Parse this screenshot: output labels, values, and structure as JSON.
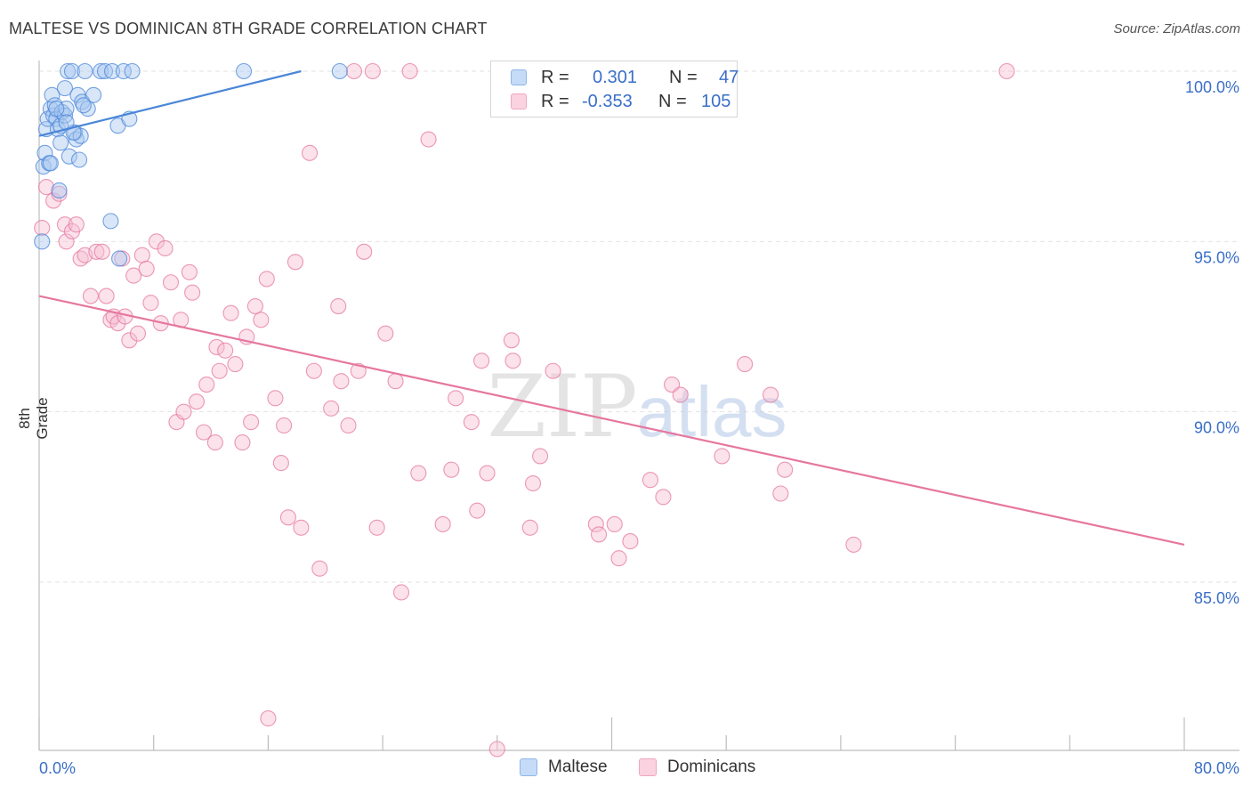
{
  "title": "MALTESE VS DOMINICAN 8TH GRADE CORRELATION CHART",
  "source": "Source: ZipAtlas.com",
  "watermark": {
    "zip": "ZIP",
    "atlas": "atlas"
  },
  "legend": {
    "rows": [
      {
        "r_label": "R =",
        "r_value": "0.301",
        "n_label": "N =",
        "n_value": "47",
        "color": "#8fb5ea",
        "fill": "#c5dbf7"
      },
      {
        "r_label": "R =",
        "r_value": "-0.353",
        "n_label": "N =",
        "n_value": "105",
        "color": "#f0a6c0",
        "fill": "#fbd2e0"
      }
    ]
  },
  "chart_data": {
    "type": "scatter",
    "title": "MALTESE VS DOMINICAN 8TH GRADE CORRELATION CHART",
    "xlabel": "",
    "ylabel": "8th Grade",
    "xlim": [
      0,
      80
    ],
    "ylim": [
      80.5,
      100.5
    ],
    "x_tick_labels": [
      "0.0%",
      "80.0%"
    ],
    "y_ticks": [
      85,
      90,
      95,
      100
    ],
    "y_tick_labels": [
      "85.0%",
      "90.0%",
      "95.0%",
      "100.0%"
    ],
    "grid": true,
    "series": [
      {
        "name": "Maltese",
        "color": "#4a86d8",
        "fill": "#a9c8f0",
        "trend": {
          "x": [
            0,
            18.3
          ],
          "y": [
            98.1,
            100.0
          ]
        },
        "points": [
          [
            0.2,
            95.0
          ],
          [
            0.3,
            97.2
          ],
          [
            0.4,
            97.6
          ],
          [
            0.5,
            98.3
          ],
          [
            0.6,
            98.6
          ],
          [
            0.7,
            97.3
          ],
          [
            0.8,
            98.9
          ],
          [
            0.9,
            99.3
          ],
          [
            1.0,
            98.7
          ],
          [
            1.1,
            99.0
          ],
          [
            1.2,
            98.6
          ],
          [
            1.3,
            98.3
          ],
          [
            1.4,
            96.5
          ],
          [
            1.5,
            97.9
          ],
          [
            1.5,
            98.4
          ],
          [
            1.6,
            98.8
          ],
          [
            1.8,
            98.7
          ],
          [
            1.8,
            99.5
          ],
          [
            1.9,
            98.9
          ],
          [
            2.0,
            100.0
          ],
          [
            2.1,
            97.5
          ],
          [
            2.3,
            100.0
          ],
          [
            2.5,
            98.2
          ],
          [
            2.6,
            98.0
          ],
          [
            2.7,
            99.3
          ],
          [
            2.8,
            97.4
          ],
          [
            2.9,
            98.1
          ],
          [
            3.0,
            99.1
          ],
          [
            3.2,
            100.0
          ],
          [
            3.4,
            98.9
          ],
          [
            3.8,
            99.3
          ],
          [
            4.3,
            100.0
          ],
          [
            4.6,
            100.0
          ],
          [
            5.0,
            95.6
          ],
          [
            5.1,
            100.0
          ],
          [
            5.5,
            98.4
          ],
          [
            5.6,
            94.5
          ],
          [
            5.9,
            100.0
          ],
          [
            6.3,
            98.6
          ],
          [
            6.5,
            100.0
          ],
          [
            14.3,
            100.0
          ],
          [
            21.0,
            100.0
          ],
          [
            1.2,
            98.9
          ],
          [
            2.4,
            98.2
          ],
          [
            0.8,
            97.3
          ],
          [
            3.1,
            99.0
          ],
          [
            1.9,
            98.5
          ]
        ]
      },
      {
        "name": "Dominicans",
        "color": "#e6779f",
        "fill": "#f7bfd2",
        "trend": {
          "x": [
            0,
            80
          ],
          "y": [
            93.4,
            86.1
          ]
        },
        "points": [
          [
            0.2,
            95.4
          ],
          [
            0.5,
            96.6
          ],
          [
            1.0,
            96.2
          ],
          [
            1.4,
            96.4
          ],
          [
            1.8,
            95.5
          ],
          [
            1.9,
            95.0
          ],
          [
            2.3,
            95.3
          ],
          [
            2.6,
            95.5
          ],
          [
            2.9,
            94.5
          ],
          [
            3.2,
            94.6
          ],
          [
            3.6,
            93.4
          ],
          [
            4.0,
            94.7
          ],
          [
            4.4,
            94.7
          ],
          [
            4.7,
            93.4
          ],
          [
            5.0,
            92.7
          ],
          [
            5.2,
            92.8
          ],
          [
            5.5,
            92.6
          ],
          [
            5.8,
            94.5
          ],
          [
            6.0,
            92.8
          ],
          [
            6.3,
            92.1
          ],
          [
            6.6,
            94.0
          ],
          [
            6.9,
            92.3
          ],
          [
            7.2,
            94.6
          ],
          [
            7.5,
            94.2
          ],
          [
            7.8,
            93.2
          ],
          [
            8.2,
            95.0
          ],
          [
            8.5,
            92.6
          ],
          [
            8.8,
            94.8
          ],
          [
            9.2,
            93.8
          ],
          [
            9.6,
            89.7
          ],
          [
            9.9,
            92.7
          ],
          [
            10.1,
            90.0
          ],
          [
            10.5,
            94.1
          ],
          [
            10.7,
            93.5
          ],
          [
            11.0,
            90.3
          ],
          [
            11.5,
            89.4
          ],
          [
            11.7,
            90.8
          ],
          [
            12.3,
            89.1
          ],
          [
            12.4,
            91.9
          ],
          [
            12.6,
            91.2
          ],
          [
            13.0,
            91.8
          ],
          [
            13.4,
            92.9
          ],
          [
            13.7,
            91.4
          ],
          [
            14.2,
            89.1
          ],
          [
            14.5,
            92.2
          ],
          [
            14.8,
            89.7
          ],
          [
            15.1,
            93.1
          ],
          [
            15.5,
            92.7
          ],
          [
            15.9,
            93.9
          ],
          [
            16.5,
            90.4
          ],
          [
            16.9,
            88.5
          ],
          [
            17.1,
            89.6
          ],
          [
            17.4,
            86.9
          ],
          [
            17.9,
            94.4
          ],
          [
            18.3,
            86.6
          ],
          [
            18.9,
            97.6
          ],
          [
            19.2,
            91.2
          ],
          [
            19.6,
            85.4
          ],
          [
            20.4,
            90.1
          ],
          [
            20.9,
            93.1
          ],
          [
            21.1,
            90.9
          ],
          [
            21.6,
            89.6
          ],
          [
            22.0,
            100.0
          ],
          [
            22.3,
            91.2
          ],
          [
            22.7,
            94.7
          ],
          [
            23.3,
            100.0
          ],
          [
            23.6,
            86.6
          ],
          [
            24.2,
            92.3
          ],
          [
            24.9,
            90.9
          ],
          [
            25.3,
            84.7
          ],
          [
            25.9,
            100.0
          ],
          [
            26.5,
            88.2
          ],
          [
            27.2,
            98.0
          ],
          [
            28.2,
            86.7
          ],
          [
            28.8,
            88.3
          ],
          [
            29.1,
            90.4
          ],
          [
            30.2,
            89.7
          ],
          [
            30.6,
            87.1
          ],
          [
            30.9,
            91.5
          ],
          [
            31.3,
            88.2
          ],
          [
            32.0,
            80.1
          ],
          [
            32.4,
            100.0
          ],
          [
            33.0,
            92.1
          ],
          [
            33.1,
            91.5
          ],
          [
            34.3,
            86.6
          ],
          [
            34.5,
            87.9
          ],
          [
            35.0,
            88.7
          ],
          [
            35.9,
            91.2
          ],
          [
            38.9,
            86.7
          ],
          [
            39.1,
            86.4
          ],
          [
            40.2,
            86.7
          ],
          [
            40.5,
            85.7
          ],
          [
            41.3,
            86.2
          ],
          [
            42.7,
            88.0
          ],
          [
            43.6,
            87.5
          ],
          [
            44.2,
            90.8
          ],
          [
            44.8,
            90.5
          ],
          [
            47.7,
            88.7
          ],
          [
            49.3,
            91.4
          ],
          [
            51.1,
            90.5
          ],
          [
            51.8,
            87.6
          ],
          [
            52.1,
            88.3
          ],
          [
            56.9,
            86.1
          ],
          [
            67.6,
            100.0
          ],
          [
            16.0,
            81.0
          ]
        ]
      }
    ]
  }
}
